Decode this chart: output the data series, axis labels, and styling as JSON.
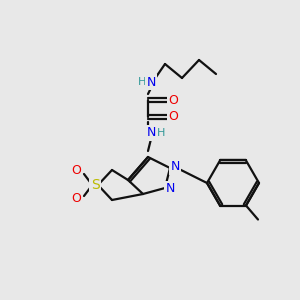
{
  "bg_color": "#e8e8e8",
  "bond_color": "#111111",
  "bond_lw": 1.6,
  "atom_colors": {
    "N": "#0000ee",
    "O": "#ee0000",
    "S": "#bbbb00",
    "H": "#339999",
    "C": "#111111"
  },
  "fs": 8.5,
  "figsize": [
    3.0,
    3.0
  ],
  "dpi": 100
}
